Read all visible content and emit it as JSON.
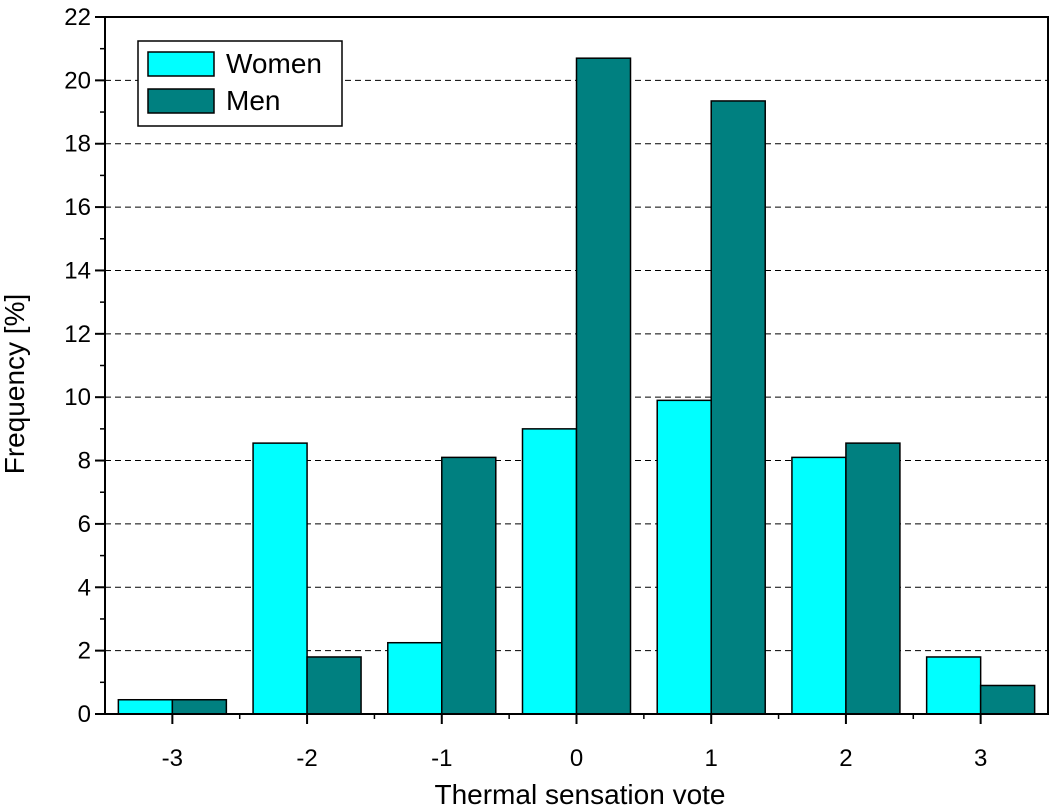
{
  "chart_data": {
    "type": "bar",
    "title": "",
    "xlabel": "Thermal sensation vote",
    "ylabel": "Frequency [%]",
    "categories": [
      "-3",
      "-2",
      "-1",
      "0",
      "1",
      "2",
      "3"
    ],
    "series": [
      {
        "name": "Women",
        "color": "#00FFFF",
        "values": [
          0.45,
          8.55,
          2.25,
          9.0,
          9.9,
          8.1,
          1.8
        ]
      },
      {
        "name": "Men",
        "color": "#008080",
        "values": [
          0.45,
          1.8,
          8.1,
          20.7,
          19.35,
          8.55,
          0.9
        ]
      }
    ],
    "ylim": [
      0,
      22
    ],
    "yticks": [
      "0",
      "2",
      "4",
      "6",
      "8",
      "10",
      "12",
      "14",
      "16",
      "18",
      "20",
      "22"
    ],
    "grid": "horizontal-dashed",
    "legend_position": "top-left"
  }
}
